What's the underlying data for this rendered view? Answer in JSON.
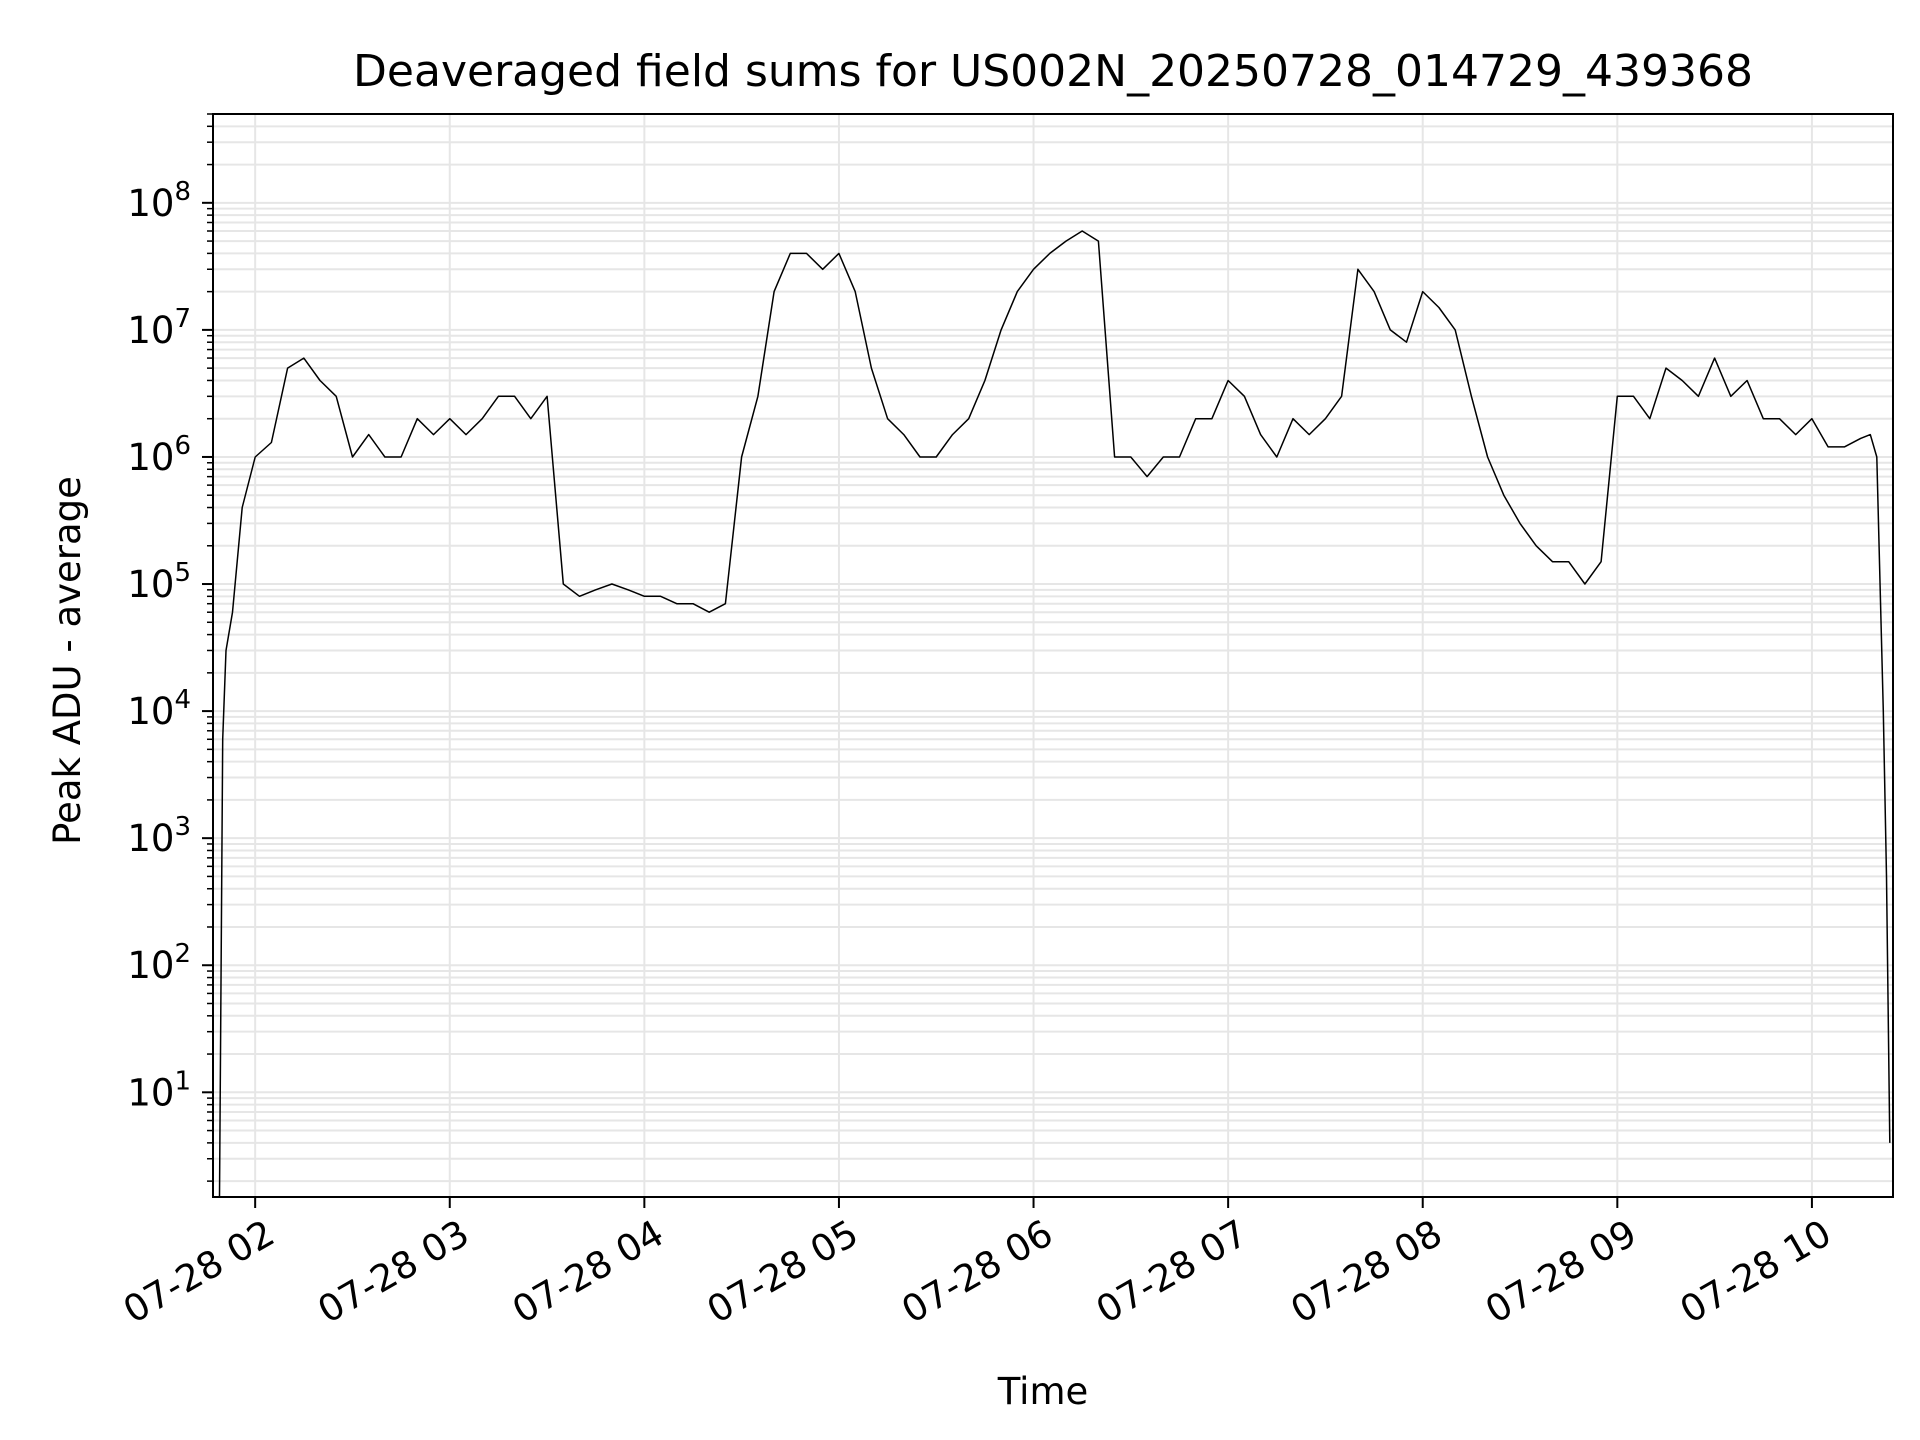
{
  "chart_data": {
    "type": "line",
    "title": "Deaveraged field sums for US002N_20250728_014729_439368",
    "xlabel": "Time",
    "ylabel": "Peak ADU - average",
    "yscale": "log",
    "ylim": [
      1.5,
      500000000
    ],
    "xlim": [
      "2025-07-28 01:47",
      "2025-07-28 10:25"
    ],
    "grid": true,
    "line_color": "#000000",
    "x_ticks": [
      "07-28 02",
      "07-28 03",
      "07-28 04",
      "07-28 05",
      "07-28 06",
      "07-28 07",
      "07-28 08",
      "07-28 09",
      "07-28 10"
    ],
    "y_ticks": [
      {
        "base": "10",
        "exp": "1",
        "value": 10
      },
      {
        "base": "10",
        "exp": "2",
        "value": 100
      },
      {
        "base": "10",
        "exp": "3",
        "value": 1000
      },
      {
        "base": "10",
        "exp": "4",
        "value": 10000
      },
      {
        "base": "10",
        "exp": "5",
        "value": 100000
      },
      {
        "base": "10",
        "exp": "6",
        "value": 1000000
      },
      {
        "base": "10",
        "exp": "7",
        "value": 10000000
      },
      {
        "base": "10",
        "exp": "8",
        "value": 100000000
      }
    ],
    "series": [
      {
        "x": [
          "2025-07-28 01:49",
          "2025-07-28 01:50",
          "2025-07-28 01:51",
          "2025-07-28 01:53",
          "2025-07-28 01:56",
          "2025-07-28 02:00",
          "2025-07-28 02:05",
          "2025-07-28 02:10",
          "2025-07-28 02:15",
          "2025-07-28 02:20",
          "2025-07-28 02:25",
          "2025-07-28 02:30",
          "2025-07-28 02:35",
          "2025-07-28 02:40",
          "2025-07-28 02:45",
          "2025-07-28 02:50",
          "2025-07-28 02:55",
          "2025-07-28 03:00",
          "2025-07-28 03:05",
          "2025-07-28 03:10",
          "2025-07-28 03:15",
          "2025-07-28 03:20",
          "2025-07-28 03:25",
          "2025-07-28 03:30",
          "2025-07-28 03:35",
          "2025-07-28 03:40",
          "2025-07-28 03:45",
          "2025-07-28 03:50",
          "2025-07-28 03:55",
          "2025-07-28 04:00",
          "2025-07-28 04:05",
          "2025-07-28 04:10",
          "2025-07-28 04:15",
          "2025-07-28 04:20",
          "2025-07-28 04:25",
          "2025-07-28 04:30",
          "2025-07-28 04:35",
          "2025-07-28 04:40",
          "2025-07-28 04:45",
          "2025-07-28 04:50",
          "2025-07-28 04:55",
          "2025-07-28 05:00",
          "2025-07-28 05:05",
          "2025-07-28 05:10",
          "2025-07-28 05:15",
          "2025-07-28 05:20",
          "2025-07-28 05:25",
          "2025-07-28 05:30",
          "2025-07-28 05:35",
          "2025-07-28 05:40",
          "2025-07-28 05:45",
          "2025-07-28 05:50",
          "2025-07-28 05:55",
          "2025-07-28 06:00",
          "2025-07-28 06:05",
          "2025-07-28 06:10",
          "2025-07-28 06:15",
          "2025-07-28 06:20",
          "2025-07-28 06:25",
          "2025-07-28 06:30",
          "2025-07-28 06:35",
          "2025-07-28 06:40",
          "2025-07-28 06:45",
          "2025-07-28 06:50",
          "2025-07-28 06:55",
          "2025-07-28 07:00",
          "2025-07-28 07:05",
          "2025-07-28 07:10",
          "2025-07-28 07:15",
          "2025-07-28 07:20",
          "2025-07-28 07:25",
          "2025-07-28 07:30",
          "2025-07-28 07:35",
          "2025-07-28 07:40",
          "2025-07-28 07:45",
          "2025-07-28 07:50",
          "2025-07-28 07:55",
          "2025-07-28 08:00",
          "2025-07-28 08:05",
          "2025-07-28 08:10",
          "2025-07-28 08:15",
          "2025-07-28 08:20",
          "2025-07-28 08:25",
          "2025-07-28 08:30",
          "2025-07-28 08:35",
          "2025-07-28 08:40",
          "2025-07-28 08:45",
          "2025-07-28 08:50",
          "2025-07-28 08:55",
          "2025-07-28 09:00",
          "2025-07-28 09:05",
          "2025-07-28 09:10",
          "2025-07-28 09:15",
          "2025-07-28 09:20",
          "2025-07-28 09:25",
          "2025-07-28 09:30",
          "2025-07-28 09:35",
          "2025-07-28 09:40",
          "2025-07-28 09:45",
          "2025-07-28 09:50",
          "2025-07-28 09:55",
          "2025-07-28 10:00",
          "2025-07-28 10:05",
          "2025-07-28 10:10",
          "2025-07-28 10:15",
          "2025-07-28 10:18",
          "2025-07-28 10:20",
          "2025-07-28 10:22",
          "2025-07-28 10:23",
          "2025-07-28 10:24"
        ],
        "y": [
          1.5,
          6000,
          30000,
          60000,
          400000,
          1000000,
          1300000,
          5000000,
          6000000,
          4000000,
          3000000,
          1000000,
          1500000,
          1000000,
          1000000,
          2000000,
          1500000,
          2000000,
          1500000,
          2000000,
          3000000,
          3000000,
          2000000,
          3000000,
          100000,
          80000,
          90000,
          100000,
          90000,
          80000,
          80000,
          70000,
          70000,
          60000,
          70000,
          1000000,
          3000000,
          20000000,
          40000000,
          40000000,
          30000000,
          40000000,
          20000000,
          5000000,
          2000000,
          1500000,
          1000000,
          1000000,
          1500000,
          2000000,
          4000000,
          10000000,
          20000000,
          30000000,
          40000000,
          50000000,
          60000000,
          50000000,
          1000000,
          1000000,
          700000,
          1000000,
          1000000,
          2000000,
          2000000,
          4000000,
          3000000,
          1500000,
          1000000,
          2000000,
          1500000,
          2000000,
          3000000,
          30000000,
          20000000,
          10000000,
          8000000,
          20000000,
          15000000,
          10000000,
          3000000,
          1000000,
          500000,
          300000,
          200000,
          150000,
          150000,
          100000,
          150000,
          3000000,
          3000000,
          2000000,
          5000000,
          4000000,
          3000000,
          6000000,
          3000000,
          4000000,
          2000000,
          2000000,
          1500000,
          2000000,
          1200000,
          1200000,
          1400000,
          1500000,
          1000000,
          10000,
          500,
          4
        ]
      }
    ]
  }
}
